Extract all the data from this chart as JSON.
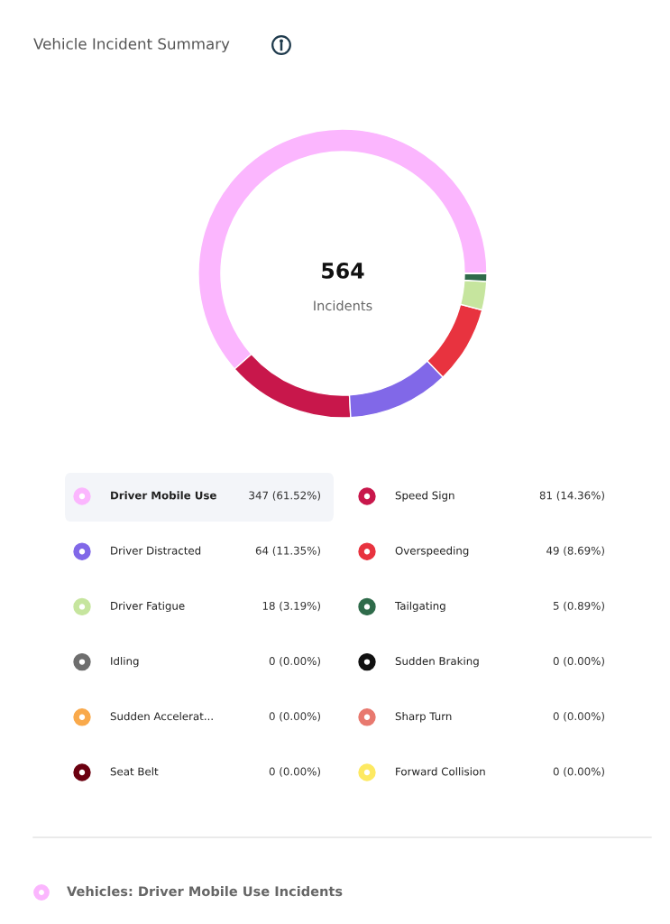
{
  "chart_data": {
    "type": "donut",
    "title": "Vehicle Incident Summary",
    "categories": [
      "Driver Mobile Use",
      "Speed Sign",
      "Driver Distracted",
      "Overspeeding",
      "Driver Fatigue",
      "Tailgating",
      "Idling",
      "Sudden Braking",
      "Sudden Accelerat...",
      "Sharp Turn",
      "Seat Belt",
      "Forward Collision"
    ],
    "values": [
      347,
      81,
      64,
      49,
      18,
      5,
      0,
      0,
      0,
      0,
      0,
      0
    ],
    "value_labels": [
      "347 (61.52%)",
      "81 (14.36%)",
      "64 (11.35%)",
      "49 (8.69%)",
      "18 (3.19%)",
      "5 (0.89%)",
      "0 (0.00%)",
      "0 (0.00%)",
      "0 (0.00%)",
      "0 (0.00%)",
      "0 (0.00%)",
      "0 (0.00%)"
    ],
    "colors": [
      "#fbb6fe",
      "#c8174b",
      "#8168e8",
      "#e8333f",
      "#c6e59e",
      "#2f6b4a",
      "#6e6e6e",
      "#111111",
      "#f9a94b",
      "#e8796f",
      "#6b0010",
      "#fde962"
    ],
    "legend": "bottom",
    "annotations": [
      "564",
      "Incidents",
      "Vehicles: Driver Mobile Use Incidents"
    ]
  }
}
